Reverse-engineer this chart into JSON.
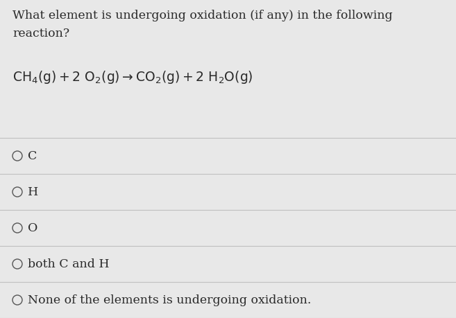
{
  "background_color": "#e8e8e8",
  "question_text_line1": "What element is undergoing oxidation (if any) in the following",
  "question_text_line2": "reaction?",
  "options": [
    "C",
    "H",
    "O",
    "both C and H",
    "None of the elements is undergoing oxidation."
  ],
  "divider_color": "#c0c0c0",
  "text_color": "#2a2a2a",
  "circle_color": "#555555",
  "question_fontsize": 12.5,
  "equation_fontsize": 13.5,
  "option_fontsize": 12.5,
  "fig_width": 6.57,
  "fig_height": 4.6,
  "dpi": 100
}
